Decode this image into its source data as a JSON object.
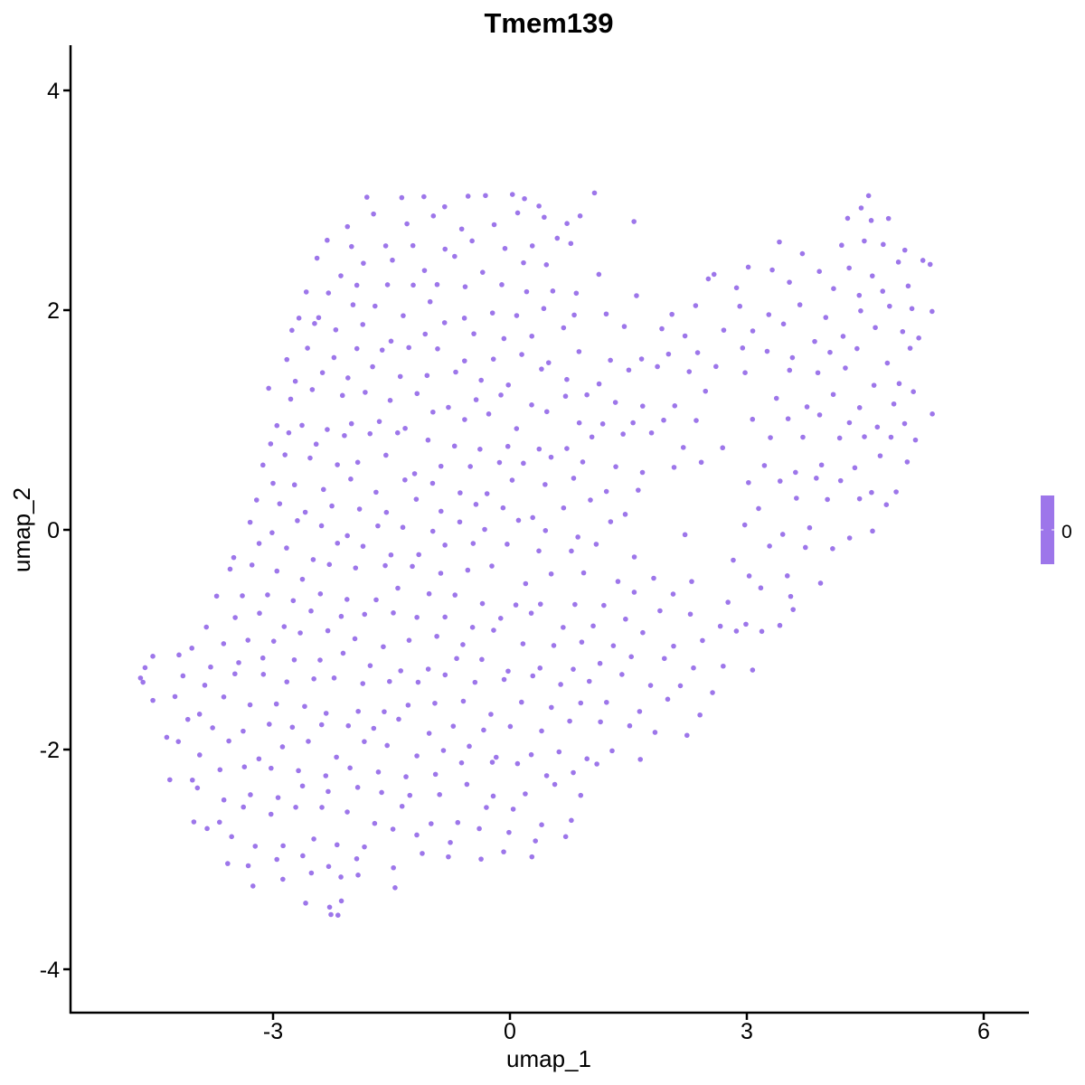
{
  "chart_data": {
    "type": "scatter",
    "title": "Tmem139",
    "xlabel": "umap_1",
    "ylabel": "umap_2",
    "xlim": [
      -5.6,
      6.5
    ],
    "ylim": [
      -4.3,
      4.4
    ],
    "xticks": [
      -3,
      0,
      3,
      6
    ],
    "yticks": [
      -4,
      -2,
      0,
      2,
      4
    ],
    "xtick_labels": [
      "-3",
      "0",
      "3",
      "6"
    ],
    "ytick_labels": [
      "-4",
      "-2",
      "0",
      "2",
      "4"
    ],
    "grid": false,
    "point_color": "#9d76ea",
    "legend": {
      "type": "colorbar",
      "placement": "right",
      "labels": [
        "0"
      ],
      "color": "#9d76ea"
    },
    "points_by_band": [
      {
        "y": 3.0,
        "x": [
          -1.8,
          -1.4,
          -1.1,
          -0.85,
          -0.55,
          -0.3,
          0.05,
          0.2,
          0.35,
          1.05,
          4.45,
          4.55
        ]
      },
      {
        "y": 2.8,
        "x": [
          -2.05,
          -1.75,
          -1.3,
          -0.95,
          -0.6,
          -0.2,
          0.1,
          0.45,
          0.7,
          0.9,
          1.55,
          4.3,
          4.6,
          4.8
        ]
      },
      {
        "y": 2.6,
        "x": [
          -2.3,
          -2.0,
          -1.6,
          -1.2,
          -0.8,
          -0.45,
          -0.05,
          0.3,
          0.6,
          0.75,
          3.4,
          3.7,
          4.2,
          4.5,
          4.7,
          5.0
        ]
      },
      {
        "y": 2.4,
        "x": [
          -2.45,
          -2.15,
          -1.85,
          -1.5,
          -1.1,
          -0.7,
          -0.35,
          0.15,
          0.45,
          1.1,
          2.6,
          3.0,
          3.3,
          3.9,
          4.3,
          4.6,
          4.9,
          5.2,
          5.3
        ]
      },
      {
        "y": 2.2,
        "x": [
          -2.55,
          -2.3,
          -1.95,
          -1.55,
          -1.25,
          -0.9,
          -0.55,
          -0.1,
          0.2,
          0.55,
          0.85,
          1.6,
          2.5,
          2.85,
          3.55,
          4.1,
          4.4,
          4.75,
          5.05
        ]
      },
      {
        "y": 2.0,
        "x": [
          -2.65,
          -2.4,
          -2.0,
          -1.7,
          -1.35,
          -1.0,
          -0.6,
          -0.25,
          0.1,
          0.4,
          0.8,
          1.2,
          2.05,
          2.35,
          2.9,
          3.3,
          3.7,
          4.0,
          4.45,
          4.8,
          5.1,
          5.35
        ]
      },
      {
        "y": 1.8,
        "x": [
          -2.75,
          -2.5,
          -2.2,
          -1.85,
          -1.5,
          -1.1,
          -0.8,
          -0.45,
          -0.1,
          0.25,
          0.65,
          1.45,
          1.9,
          2.2,
          2.7,
          3.1,
          3.45,
          3.85,
          4.2,
          4.6,
          4.95,
          5.2
        ]
      },
      {
        "y": 1.6,
        "x": [
          -2.85,
          -2.55,
          -2.25,
          -1.95,
          -1.6,
          -1.3,
          -0.9,
          -0.55,
          -0.2,
          0.15,
          0.5,
          0.85,
          1.3,
          1.65,
          2.0,
          2.4,
          2.95,
          3.25,
          3.6,
          4.05,
          4.4,
          4.75,
          5.05
        ]
      },
      {
        "y": 1.4,
        "x": [
          -2.7,
          -2.4,
          -2.05,
          -1.75,
          -1.4,
          -1.05,
          -0.7,
          -0.35,
          0.0,
          0.4,
          0.75,
          1.1,
          1.5,
          1.85,
          2.25,
          2.6,
          3.0,
          3.55,
          3.9,
          4.25,
          4.6,
          4.95
        ]
      },
      {
        "y": 1.2,
        "x": [
          -3.05,
          -2.75,
          -2.5,
          -2.15,
          -1.85,
          -1.5,
          -1.15,
          -0.8,
          -0.45,
          -0.1,
          0.3,
          0.7,
          1.0,
          1.35,
          1.7,
          2.1,
          2.5,
          3.35,
          3.75,
          4.1,
          4.45,
          4.85,
          5.1
        ]
      },
      {
        "y": 1.0,
        "x": [
          -2.95,
          -2.65,
          -2.3,
          -2.0,
          -1.65,
          -1.3,
          -0.95,
          -0.6,
          -0.25,
          0.1,
          0.45,
          0.85,
          1.2,
          1.55,
          1.95,
          2.35,
          3.1,
          3.5,
          3.9,
          4.3,
          4.65,
          5.0,
          5.35
        ]
      },
      {
        "y": 0.8,
        "x": [
          -3.05,
          -2.8,
          -2.45,
          -2.1,
          -1.8,
          -1.4,
          -1.05,
          -0.7,
          -0.4,
          0.0,
          0.35,
          0.75,
          1.05,
          1.45,
          1.8,
          2.2,
          2.7,
          3.3,
          3.7,
          4.15,
          4.5,
          4.85,
          5.15
        ]
      },
      {
        "y": 0.6,
        "x": [
          -3.1,
          -2.85,
          -2.55,
          -2.2,
          -1.9,
          -1.55,
          -1.2,
          -0.85,
          -0.5,
          -0.15,
          0.2,
          0.55,
          0.95,
          1.35,
          1.7,
          2.05,
          2.4,
          3.2,
          3.6,
          3.95,
          4.35,
          4.7,
          5.05
        ]
      },
      {
        "y": 0.4,
        "x": [
          -3.0,
          -2.7,
          -2.35,
          -2.0,
          -1.7,
          -1.35,
          -1.0,
          -0.65,
          -0.3,
          0.05,
          0.45,
          0.8,
          1.2,
          1.6,
          3.0,
          3.45,
          3.85,
          4.2,
          4.6,
          4.9
        ]
      },
      {
        "y": 0.2,
        "x": [
          -3.2,
          -2.9,
          -2.6,
          -2.25,
          -1.9,
          -1.55,
          -1.2,
          -0.85,
          -0.45,
          -0.1,
          0.3,
          0.65,
          1.0,
          1.45,
          3.15,
          3.6,
          4.05,
          4.45,
          4.75
        ]
      },
      {
        "y": 0.0,
        "x": [
          -3.3,
          -3.0,
          -2.7,
          -2.4,
          -2.05,
          -1.7,
          -1.35,
          -1.0,
          -0.65,
          -0.3,
          0.1,
          0.45,
          0.85,
          1.25,
          2.2,
          3.0,
          3.45,
          3.8,
          4.3,
          4.6
        ]
      },
      {
        "y": -0.2,
        "x": [
          -3.5,
          -3.15,
          -2.85,
          -2.5,
          -2.2,
          -1.85,
          -1.5,
          -1.15,
          -0.8,
          -0.45,
          -0.05,
          0.35,
          0.75,
          1.1,
          1.6,
          2.85,
          3.3,
          3.75,
          4.1
        ]
      },
      {
        "y": -0.4,
        "x": [
          -3.55,
          -3.25,
          -2.95,
          -2.6,
          -2.3,
          -1.95,
          -1.6,
          -1.25,
          -0.9,
          -0.55,
          -0.2,
          0.2,
          0.55,
          0.95,
          1.35,
          1.8,
          2.3,
          3.05,
          3.5,
          3.95
        ]
      },
      {
        "y": -0.6,
        "x": [
          -3.7,
          -3.4,
          -3.05,
          -2.75,
          -2.4,
          -2.05,
          -1.7,
          -1.4,
          -1.05,
          -0.7,
          -0.35,
          0.05,
          0.4,
          0.8,
          1.2,
          1.6,
          2.05,
          2.75,
          3.2,
          3.55
        ]
      },
      {
        "y": -0.8,
        "x": [
          -3.85,
          -3.5,
          -3.15,
          -2.85,
          -2.5,
          -2.15,
          -1.85,
          -1.5,
          -1.15,
          -0.8,
          -0.45,
          -0.1,
          0.3,
          0.7,
          1.05,
          1.45,
          1.9,
          2.3,
          2.65,
          3.0,
          3.4,
          3.6
        ]
      },
      {
        "y": -1.0,
        "x": [
          -4.0,
          -3.65,
          -3.3,
          -3.0,
          -2.65,
          -2.3,
          -1.95,
          -1.6,
          -1.25,
          -0.95,
          -0.6,
          -0.2,
          0.15,
          0.55,
          0.9,
          1.3,
          1.7,
          2.1,
          2.45,
          2.85,
          3.2
        ]
      },
      {
        "y": -1.2,
        "x": [
          -4.6,
          -4.55,
          -4.2,
          -3.8,
          -3.45,
          -3.1,
          -2.75,
          -2.4,
          -2.1,
          -1.75,
          -1.4,
          -1.05,
          -0.7,
          -0.35,
          0.0,
          0.4,
          0.8,
          1.15,
          1.55,
          1.95,
          2.35,
          2.7,
          3.05
        ]
      },
      {
        "y": -1.3,
        "x": [
          -4.7,
          -4.62
        ]
      },
      {
        "y": -1.4,
        "x": [
          -4.15,
          -3.85,
          -3.5,
          -3.15,
          -2.85,
          -2.5,
          -2.2,
          -1.85,
          -1.5,
          -1.15,
          -0.8,
          -0.45,
          -0.1,
          0.3,
          0.65,
          1.0,
          1.4,
          1.8,
          2.15,
          2.55
        ]
      },
      {
        "y": -1.5,
        "x": [
          -4.55
        ]
      },
      {
        "y": -1.6,
        "x": [
          -4.25,
          -3.95,
          -3.6,
          -3.3,
          -2.95,
          -2.6,
          -2.3,
          -1.95,
          -1.6,
          -1.3,
          -0.95,
          -0.6,
          -0.25,
          0.15,
          0.5,
          0.9,
          1.25,
          1.65,
          2.0,
          2.4
        ]
      },
      {
        "y": -1.8,
        "x": [
          -4.35,
          -4.1,
          -3.75,
          -3.4,
          -3.05,
          -2.75,
          -2.4,
          -2.05,
          -1.7,
          -1.4,
          -1.05,
          -0.7,
          -0.35,
          0.0,
          0.4,
          0.75,
          1.15,
          1.5,
          1.85,
          2.25
        ]
      },
      {
        "y": -2.0,
        "x": [
          -4.2,
          -3.9,
          -3.55,
          -3.2,
          -2.9,
          -2.55,
          -2.2,
          -1.85,
          -1.55,
          -1.2,
          -0.85,
          -0.5,
          -0.15,
          0.25,
          0.6,
          0.95,
          1.3,
          1.65
        ]
      },
      {
        "y": -2.2,
        "x": [
          -4.3,
          -4.0,
          -3.7,
          -3.35,
          -3.0,
          -2.7,
          -2.35,
          -2.0,
          -1.65,
          -1.3,
          -0.95,
          -0.6,
          -0.25,
          0.1,
          0.45,
          0.8,
          1.1
        ]
      },
      {
        "y": -2.4,
        "x": [
          -3.95,
          -3.6,
          -3.3,
          -2.95,
          -2.6,
          -2.3,
          -1.95,
          -1.6,
          -1.25,
          -0.9,
          -0.55,
          -0.2,
          0.2,
          0.55,
          0.9
        ]
      },
      {
        "y": -2.6,
        "x": [
          -4.0,
          -3.7,
          -3.35,
          -3.05,
          -2.7,
          -2.4,
          -2.05,
          -1.7,
          -1.35,
          -1.0,
          -0.65,
          -0.3,
          0.05,
          0.4,
          0.75
        ]
      },
      {
        "y": -2.8,
        "x": [
          -3.85,
          -3.5,
          -3.2,
          -2.85,
          -2.5,
          -2.2,
          -1.85,
          -1.5,
          -1.15,
          -0.75,
          -0.4,
          0.0,
          0.35,
          0.7
        ]
      },
      {
        "y": -3.0,
        "x": [
          -3.6,
          -3.3,
          -2.95,
          -2.6,
          -2.3,
          -1.95,
          -1.5,
          -1.1,
          -0.75,
          -0.35,
          -0.05,
          0.25
        ]
      },
      {
        "y": -3.2,
        "x": [
          -3.25,
          -2.85,
          -2.5,
          -2.15,
          -1.95,
          -1.45
        ]
      },
      {
        "y": -3.4,
        "x": [
          -2.6,
          -2.3,
          -2.15
        ]
      },
      {
        "y": -3.5,
        "x": [
          -2.25,
          -2.15
        ]
      }
    ]
  }
}
